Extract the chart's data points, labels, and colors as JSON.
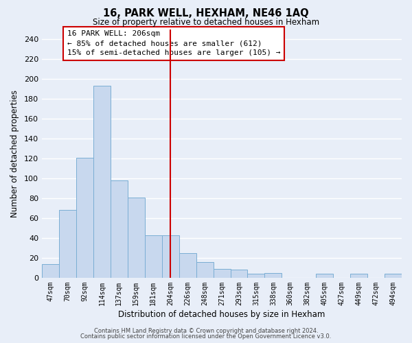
{
  "title": "16, PARK WELL, HEXHAM, NE46 1AQ",
  "subtitle": "Size of property relative to detached houses in Hexham",
  "xlabel": "Distribution of detached houses by size in Hexham",
  "ylabel": "Number of detached properties",
  "bar_color": "#c8d8ee",
  "bar_edge_color": "#7aaed4",
  "categories": [
    "47sqm",
    "70sqm",
    "92sqm",
    "114sqm",
    "137sqm",
    "159sqm",
    "181sqm",
    "204sqm",
    "226sqm",
    "248sqm",
    "271sqm",
    "293sqm",
    "315sqm",
    "338sqm",
    "360sqm",
    "382sqm",
    "405sqm",
    "427sqm",
    "449sqm",
    "472sqm",
    "494sqm"
  ],
  "values": [
    14,
    68,
    121,
    193,
    98,
    81,
    43,
    43,
    25,
    16,
    9,
    8,
    4,
    5,
    0,
    0,
    4,
    0,
    4,
    0,
    4
  ],
  "vline_x": 7,
  "vline_color": "#cc0000",
  "ylim": [
    0,
    250
  ],
  "yticks": [
    0,
    20,
    40,
    60,
    80,
    100,
    120,
    140,
    160,
    180,
    200,
    220,
    240
  ],
  "annotation_title": "16 PARK WELL: 206sqm",
  "annotation_line1": "← 85% of detached houses are smaller (612)",
  "annotation_line2": "15% of semi-detached houses are larger (105) →",
  "footer1": "Contains HM Land Registry data © Crown copyright and database right 2024.",
  "footer2": "Contains public sector information licensed under the Open Government Licence v3.0.",
  "background_color": "#e8eef8",
  "plot_bg_color": "#e8eef8",
  "grid_color": "#ffffff"
}
